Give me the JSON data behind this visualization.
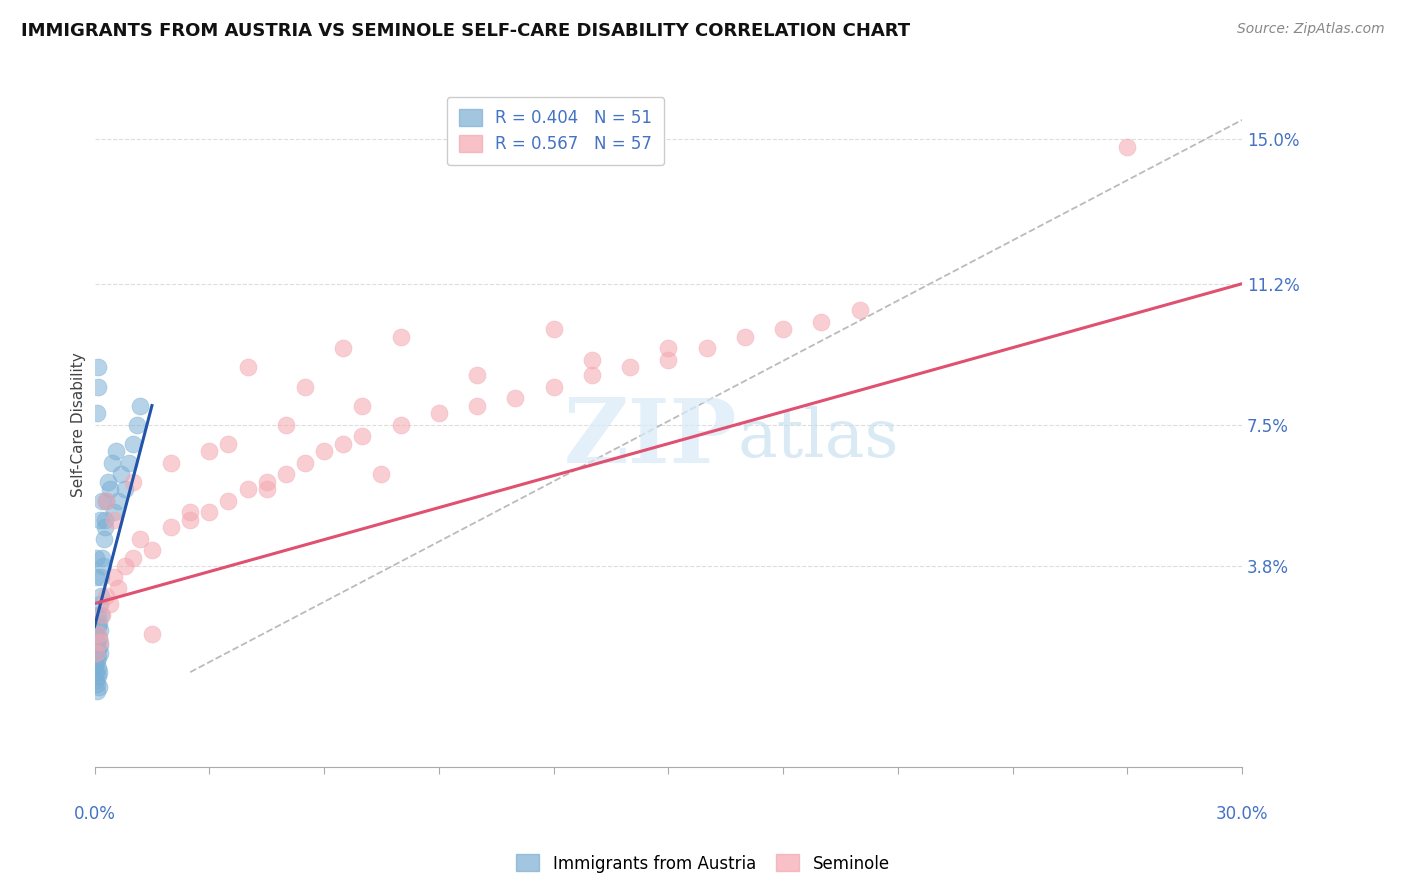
{
  "title": "IMMIGRANTS FROM AUSTRIA VS SEMINOLE SELF-CARE DISABILITY CORRELATION CHART",
  "source": "Source: ZipAtlas.com",
  "ylabel": "Self-Care Disability",
  "yticks": [
    3.8,
    7.5,
    11.2,
    15.0
  ],
  "xlim": [
    0.0,
    30.0
  ],
  "ylim": [
    -1.5,
    16.5
  ],
  "blue_color": "#7bafd4",
  "pink_color": "#f4a7b0",
  "blue_R": 0.404,
  "blue_N": 51,
  "pink_R": 0.567,
  "pink_N": 57,
  "legend_label_blue": "Immigrants from Austria",
  "legend_label_pink": "Seminole",
  "watermark_zip": "ZIP",
  "watermark_atlas": "atlas",
  "label_color": "#4472c4",
  "blue_scatter_x": [
    0.02,
    0.03,
    0.04,
    0.05,
    0.05,
    0.06,
    0.06,
    0.07,
    0.07,
    0.08,
    0.08,
    0.09,
    0.09,
    0.1,
    0.1,
    0.11,
    0.11,
    0.12,
    0.12,
    0.13,
    0.13,
    0.14,
    0.15,
    0.16,
    0.17,
    0.18,
    0.2,
    0.22,
    0.24,
    0.26,
    0.28,
    0.3,
    0.35,
    0.4,
    0.45,
    0.5,
    0.55,
    0.6,
    0.7,
    0.8,
    0.9,
    1.0,
    1.1,
    1.2,
    0.04,
    0.05,
    0.06,
    0.08,
    0.1,
    0.15,
    0.2
  ],
  "blue_scatter_y": [
    1.2,
    0.8,
    1.5,
    1.0,
    2.0,
    1.3,
    0.5,
    1.8,
    0.7,
    2.2,
    1.4,
    0.9,
    1.6,
    2.5,
    1.1,
    1.9,
    0.6,
    2.3,
    1.0,
    1.7,
    2.8,
    1.5,
    2.1,
    3.0,
    2.5,
    3.5,
    4.0,
    3.8,
    4.5,
    5.0,
    4.8,
    5.5,
    6.0,
    5.8,
    6.5,
    5.2,
    6.8,
    5.5,
    6.2,
    5.8,
    6.5,
    7.0,
    7.5,
    8.0,
    3.5,
    4.0,
    7.8,
    8.5,
    9.0,
    5.0,
    5.5
  ],
  "pink_scatter_x": [
    0.05,
    0.1,
    0.15,
    0.2,
    0.3,
    0.4,
    0.5,
    0.6,
    0.8,
    1.0,
    1.2,
    1.5,
    2.0,
    2.5,
    3.0,
    3.5,
    4.0,
    4.5,
    5.0,
    5.5,
    6.0,
    6.5,
    7.0,
    8.0,
    9.0,
    10.0,
    11.0,
    12.0,
    13.0,
    14.0,
    15.0,
    16.0,
    17.0,
    18.0,
    19.0,
    20.0,
    0.3,
    0.5,
    1.0,
    2.0,
    3.5,
    5.0,
    7.0,
    4.0,
    6.5,
    3.0,
    5.5,
    8.0,
    12.0,
    15.0,
    10.0,
    13.0,
    7.5,
    4.5,
    2.5,
    1.5,
    27.0
  ],
  "pink_scatter_y": [
    1.5,
    2.0,
    1.8,
    2.5,
    3.0,
    2.8,
    3.5,
    3.2,
    3.8,
    4.0,
    4.5,
    4.2,
    4.8,
    5.0,
    5.2,
    5.5,
    5.8,
    6.0,
    6.2,
    6.5,
    6.8,
    7.0,
    7.2,
    7.5,
    7.8,
    8.0,
    8.2,
    8.5,
    8.8,
    9.0,
    9.2,
    9.5,
    9.8,
    10.0,
    10.2,
    10.5,
    5.5,
    5.0,
    6.0,
    6.5,
    7.0,
    7.5,
    8.0,
    9.0,
    9.5,
    6.8,
    8.5,
    9.8,
    10.0,
    9.5,
    8.8,
    9.2,
    6.2,
    5.8,
    5.2,
    2.0,
    14.8
  ],
  "blue_line_x": [
    0.0,
    1.5
  ],
  "blue_line_y": [
    2.2,
    8.0
  ],
  "pink_line_x": [
    0.0,
    30.0
  ],
  "pink_line_y": [
    2.8,
    11.2
  ],
  "diag_line_x_start": 2.5,
  "diag_line_x_end": 30.0,
  "diag_line_y_start": 1.0,
  "diag_line_y_end": 15.5
}
